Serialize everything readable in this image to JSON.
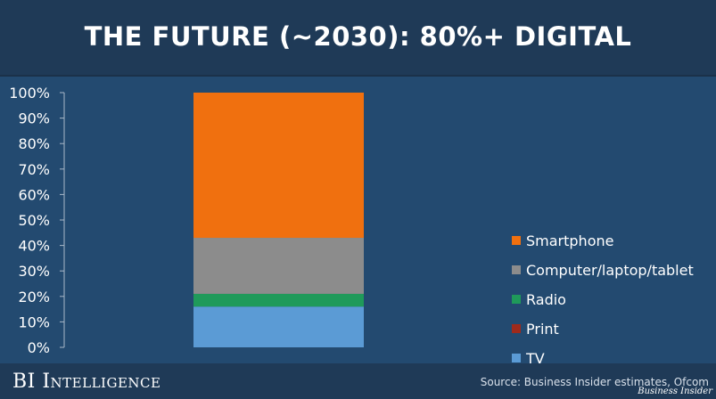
{
  "header": {
    "title": "THE FUTURE (~2030): 80%+ DIGITAL"
  },
  "footer": {
    "brand": "BI Intelligence",
    "source": "Source: Business Insider estimates, Ofcom",
    "watermark": "Business Insider"
  },
  "chart_data": {
    "type": "bar",
    "stacked": true,
    "title": "THE FUTURE (~2030): 80%+ DIGITAL",
    "xlabel": "",
    "ylabel": "",
    "ylim": [
      0,
      100
    ],
    "yticks": [
      "0%",
      "10%",
      "20%",
      "30%",
      "40%",
      "50%",
      "60%",
      "70%",
      "80%",
      "90%",
      "100%"
    ],
    "categories": [
      ""
    ],
    "legend_position": "right",
    "grid": false,
    "series": [
      {
        "name": "TV",
        "values": [
          16
        ],
        "color": "#5b9bd5"
      },
      {
        "name": "Print",
        "values": [
          0
        ],
        "color": "#9e2a1c"
      },
      {
        "name": "Radio",
        "values": [
          5
        ],
        "color": "#1f9a5a"
      },
      {
        "name": "Computer/laptop/tablet",
        "values": [
          22
        ],
        "color": "#8c8c8c"
      },
      {
        "name": "Smartphone",
        "values": [
          57
        ],
        "color": "#f0700f"
      }
    ],
    "legend_order": [
      "Smartphone",
      "Computer/laptop/tablet",
      "Radio",
      "Print",
      "TV"
    ]
  }
}
